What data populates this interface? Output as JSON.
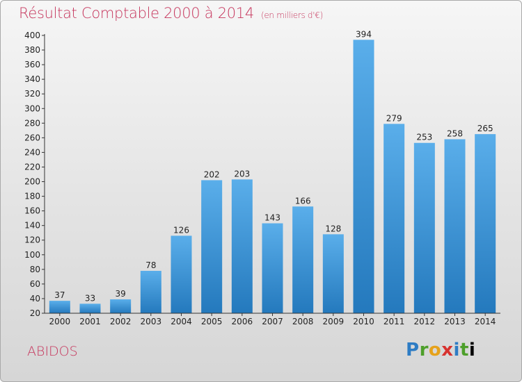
{
  "title": "Résultat Comptable 2000 à 2014",
  "subtitle": "(en milliers d'€)",
  "commune": "ABIDOS",
  "logo": {
    "letters": [
      "P",
      "r",
      "o",
      "x",
      "i",
      "t",
      "i"
    ],
    "text": "Proxiti"
  },
  "colors": {
    "title": "#c6365d",
    "bar_top": "#5aaeea",
    "bar_bottom": "#2479bd"
  },
  "chart_data": {
    "type": "bar",
    "title": "Résultat Comptable 2000 à 2014",
    "subtitle": "(en milliers d'€)",
    "categories": [
      "2000",
      "2001",
      "2002",
      "2003",
      "2004",
      "2005",
      "2006",
      "2007",
      "2008",
      "2009",
      "2010",
      "2011",
      "2012",
      "2013",
      "2014"
    ],
    "values": [
      37,
      33,
      39,
      78,
      126,
      202,
      203,
      143,
      166,
      128,
      394,
      279,
      253,
      258,
      265
    ],
    "data_labels": [
      "37",
      "33",
      "39",
      "78",
      "126",
      "202",
      "203",
      "143",
      "166",
      "128",
      "394",
      "279",
      "253",
      "258",
      "265"
    ],
    "y_ticks": [
      "20",
      "40",
      "60",
      "80",
      "100",
      "120",
      "140",
      "160",
      "180",
      "200",
      "220",
      "240",
      "260",
      "280",
      "300",
      "320",
      "340",
      "360",
      "380",
      "400"
    ],
    "ylim": [
      20,
      400
    ],
    "grid": false,
    "xlabel": "",
    "ylabel": ""
  }
}
